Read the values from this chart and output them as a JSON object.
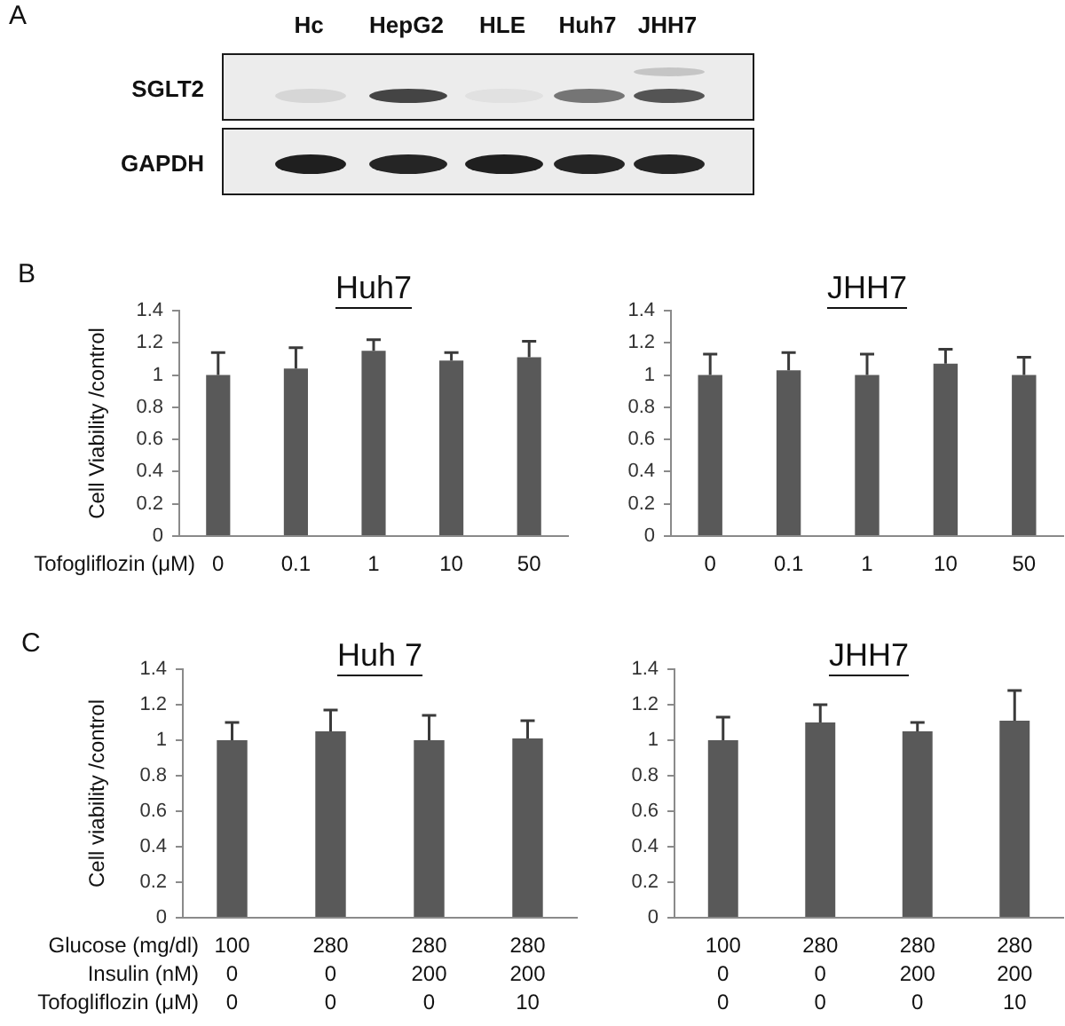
{
  "chart_data": [
    {
      "type": "other",
      "annotations": [
        "A"
      ],
      "categories": [
        "Hc",
        "HepG2",
        "HLE",
        "Huh7",
        "JHH7"
      ],
      "y_categories": [
        "SGLT2",
        "GAPDH"
      ]
    },
    {
      "type": "bar",
      "title": "Huh7",
      "ylabel": "Cell Viability /control",
      "xlabel": "Tofogliflozin (μM)",
      "annotations": [
        "B"
      ],
      "categories": [
        "0",
        "0.1",
        "1",
        "10",
        "50"
      ],
      "values": [
        1.0,
        1.04,
        1.15,
        1.09,
        1.11
      ],
      "errors": [
        [
          1.0,
          1.14
        ],
        [
          1.04,
          1.17
        ],
        [
          1.15,
          1.22
        ],
        [
          1.09,
          1.14
        ],
        [
          1.11,
          1.21
        ]
      ],
      "color": "#595959",
      "ylim": [
        0,
        1.4
      ],
      "yticks": [
        0,
        0.2,
        0.4,
        0.6,
        0.8,
        1,
        1.2,
        1.4
      ]
    },
    {
      "type": "bar",
      "title": "JHH7",
      "categories": [
        "0",
        "0.1",
        "1",
        "10",
        "50"
      ],
      "values": [
        1.0,
        1.03,
        1.0,
        1.07,
        1.0
      ],
      "errors": [
        [
          1.0,
          1.13
        ],
        [
          1.03,
          1.14
        ],
        [
          1.0,
          1.13
        ],
        [
          1.07,
          1.16
        ],
        [
          1.0,
          1.11
        ]
      ],
      "color": "#595959",
      "ylim": [
        0,
        1.4
      ],
      "yticks": [
        0,
        0.2,
        0.4,
        0.6,
        0.8,
        1,
        1.2,
        1.4
      ]
    },
    {
      "type": "bar",
      "title": "Huh 7",
      "ylabel": "Cell viability /control",
      "xlabel": "Glucose (mg/dl)\nInsulin (nM)\nTofogliflozin (μM)",
      "annotations": [
        "C"
      ],
      "categories": [
        "100\n0\n0",
        "280\n0\n0",
        "280\n200\n0",
        "280\n200\n10"
      ],
      "values": [
        1.0,
        1.05,
        1.0,
        1.01
      ],
      "errors": [
        [
          1.0,
          1.1
        ],
        [
          1.05,
          1.17
        ],
        [
          1.0,
          1.14
        ],
        [
          1.01,
          1.11
        ]
      ],
      "color": "#595959",
      "ylim": [
        0,
        1.4
      ],
      "yticks": [
        0,
        0.2,
        0.4,
        0.6,
        0.8,
        1,
        1.2,
        1.4
      ]
    },
    {
      "type": "bar",
      "title": "JHH7",
      "categories": [
        "100\n0\n0",
        "280\n0\n0",
        "280\n200\n0",
        "280\n200\n10"
      ],
      "values": [
        1.0,
        1.1,
        1.05,
        1.11
      ],
      "errors": [
        [
          1.0,
          1.13
        ],
        [
          1.1,
          1.2
        ],
        [
          1.05,
          1.1
        ],
        [
          1.11,
          1.28
        ]
      ],
      "color": "#595959",
      "ylim": [
        0,
        1.4
      ],
      "yticks": [
        0,
        0.2,
        0.4,
        0.6,
        0.8,
        1,
        1.2,
        1.4
      ]
    }
  ]
}
